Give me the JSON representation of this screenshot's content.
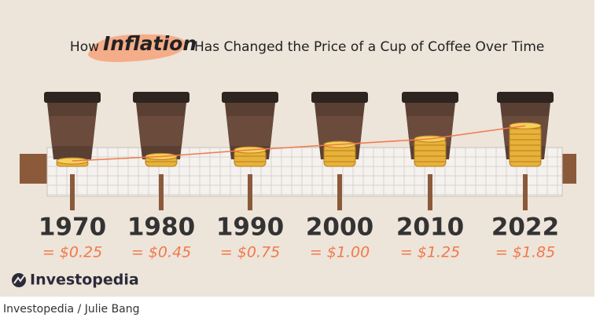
{
  "chart_data": {
    "type": "pictograph",
    "title_before": "How",
    "title_highlight": "Inflation",
    "title_after": "Has Changed the Price of a Cup of Coffee Over Time",
    "categories": [
      "1970",
      "1980",
      "1990",
      "2000",
      "2010",
      "2022"
    ],
    "values": [
      0.25,
      0.45,
      0.75,
      1.0,
      1.25,
      1.85
    ],
    "value_labels": [
      "= $0.25",
      "= $0.45",
      "= $0.75",
      "= $1.00",
      "= $1.25",
      "= $1.85"
    ],
    "color": "#e8b23a",
    "line_color": "#f07a4a",
    "brand": "Investopedia"
  },
  "caption": "Investopedia / Julie Bang"
}
